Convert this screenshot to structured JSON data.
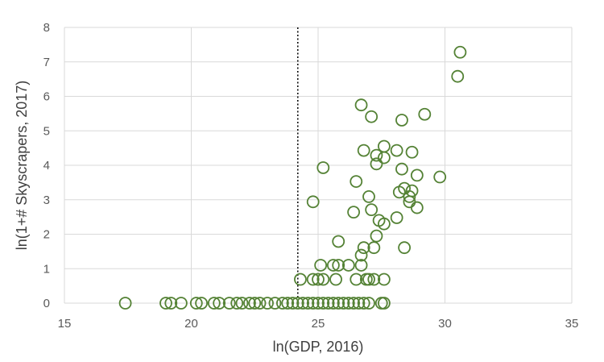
{
  "chart_data": {
    "type": "scatter",
    "title": "",
    "xlabel": "ln(GDP, 2016)",
    "ylabel": "ln(1+# Skyscrapers, 2017)",
    "xlim": [
      15,
      35
    ],
    "ylim": [
      0,
      8
    ],
    "xticks": [
      15,
      20,
      25,
      30,
      35
    ],
    "yticks": [
      0,
      1,
      2,
      3,
      4,
      5,
      6,
      7,
      8
    ],
    "grid": true,
    "legend": "none",
    "marker": "hollow circle",
    "colors": {
      "marker": "#548235",
      "grid": "#d9d9d9",
      "axis_text": "#595959",
      "threshold_line": "#000000"
    },
    "threshold_line": {
      "x": 24.2,
      "style": "dotted vertical"
    },
    "series": [
      {
        "values": [
          [
            17.4,
            0
          ],
          [
            19.0,
            0
          ],
          [
            19.2,
            0
          ],
          [
            19.6,
            0
          ],
          [
            20.2,
            0
          ],
          [
            20.4,
            0
          ],
          [
            20.9,
            0
          ],
          [
            21.1,
            0
          ],
          [
            21.5,
            0
          ],
          [
            21.8,
            0
          ],
          [
            22.0,
            0
          ],
          [
            22.3,
            0
          ],
          [
            22.5,
            0
          ],
          [
            22.7,
            0
          ],
          [
            23.0,
            0
          ],
          [
            23.3,
            0
          ],
          [
            23.6,
            0
          ],
          [
            23.8,
            0
          ],
          [
            24.0,
            0
          ],
          [
            24.2,
            0
          ],
          [
            24.4,
            0
          ],
          [
            24.6,
            0
          ],
          [
            24.8,
            0
          ],
          [
            25.0,
            0
          ],
          [
            25.2,
            0
          ],
          [
            25.4,
            0
          ],
          [
            25.6,
            0
          ],
          [
            25.8,
            0
          ],
          [
            26.0,
            0
          ],
          [
            26.2,
            0
          ],
          [
            26.4,
            0
          ],
          [
            26.6,
            0
          ],
          [
            26.8,
            0
          ],
          [
            27.0,
            0
          ],
          [
            27.5,
            0
          ],
          [
            27.6,
            0
          ],
          [
            24.3,
            0.69
          ],
          [
            24.8,
            0.69
          ],
          [
            25.0,
            0.69
          ],
          [
            25.2,
            0.69
          ],
          [
            25.7,
            0.69
          ],
          [
            26.5,
            0.69
          ],
          [
            26.9,
            0.69
          ],
          [
            27.0,
            0.69
          ],
          [
            27.2,
            0.69
          ],
          [
            27.6,
            0.69
          ],
          [
            25.1,
            1.1
          ],
          [
            25.6,
            1.1
          ],
          [
            25.8,
            1.1
          ],
          [
            26.2,
            1.1
          ],
          [
            26.7,
            1.1
          ],
          [
            26.7,
            1.39
          ],
          [
            26.8,
            1.61
          ],
          [
            27.2,
            1.61
          ],
          [
            28.4,
            1.61
          ],
          [
            25.8,
            1.79
          ],
          [
            27.3,
            1.95
          ],
          [
            27.6,
            2.3
          ],
          [
            27.4,
            2.4
          ],
          [
            28.1,
            2.48
          ],
          [
            26.4,
            2.64
          ],
          [
            27.1,
            2.71
          ],
          [
            28.9,
            2.77
          ],
          [
            24.8,
            2.94
          ],
          [
            28.6,
            2.94
          ],
          [
            27.0,
            3.09
          ],
          [
            28.6,
            3.09
          ],
          [
            28.2,
            3.22
          ],
          [
            28.7,
            3.26
          ],
          [
            28.4,
            3.33
          ],
          [
            26.5,
            3.53
          ],
          [
            29.8,
            3.66
          ],
          [
            28.9,
            3.71
          ],
          [
            28.3,
            3.89
          ],
          [
            25.2,
            3.93
          ],
          [
            27.3,
            4.04
          ],
          [
            27.6,
            4.22
          ],
          [
            27.3,
            4.29
          ],
          [
            28.7,
            4.38
          ],
          [
            28.1,
            4.43
          ],
          [
            26.8,
            4.43
          ],
          [
            27.6,
            4.55
          ],
          [
            28.3,
            5.31
          ],
          [
            27.1,
            5.41
          ],
          [
            29.2,
            5.48
          ],
          [
            26.7,
            5.75
          ],
          [
            30.5,
            6.58
          ],
          [
            30.6,
            7.28
          ]
        ]
      }
    ]
  }
}
